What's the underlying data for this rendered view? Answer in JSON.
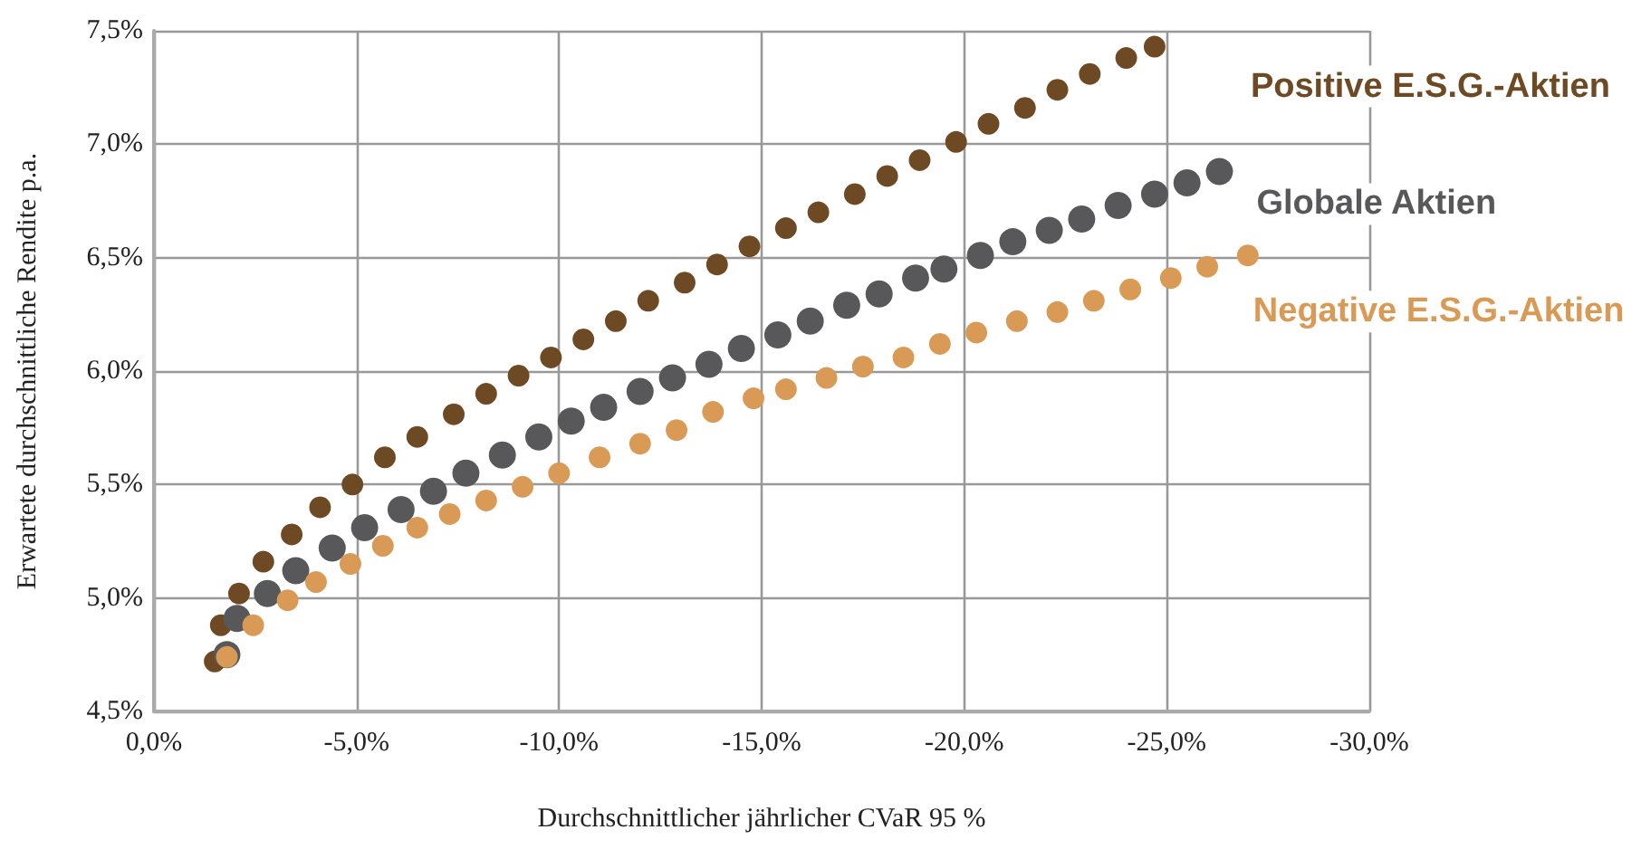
{
  "chart_data": {
    "type": "scatter",
    "xlabel": "Durchschnittlicher jährlicher CVaR 95 %",
    "ylabel": "Erwartete durchschnittliche Rendite p.a.",
    "xlim": [
      0,
      -30
    ],
    "xticks": [
      {
        "value": 0,
        "label": "0,0%"
      },
      {
        "value": -5,
        "label": "-5,0%"
      },
      {
        "value": -10,
        "label": "-10,0%"
      },
      {
        "value": -15,
        "label": "-15,0%"
      },
      {
        "value": -20,
        "label": "-20,0%"
      },
      {
        "value": -25,
        "label": "-25,0%"
      },
      {
        "value": -30,
        "label": "-30,0%"
      }
    ],
    "ylim": [
      4.5,
      7.5
    ],
    "yticks": [
      {
        "value": 4.5,
        "label": "4,5%"
      },
      {
        "value": 5.0,
        "label": "5,0%"
      },
      {
        "value": 5.5,
        "label": "5,5%"
      },
      {
        "value": 6.0,
        "label": "6,0%"
      },
      {
        "value": 6.5,
        "label": "6,5%"
      },
      {
        "value": 7.0,
        "label": "7,0%"
      },
      {
        "value": 7.5,
        "label": "7,5%"
      }
    ],
    "grid": true,
    "legend": false,
    "marker": "circle",
    "series": [
      {
        "name": "Positive E.S.G.-Aktien",
        "color": "#6e4a24",
        "x": [
          -1.5,
          -1.65,
          -2.1,
          -2.7,
          -3.4,
          -4.1,
          -4.9,
          -5.7,
          -6.5,
          -7.4,
          -8.2,
          -9.0,
          -9.8,
          -10.6,
          -11.4,
          -12.2,
          -13.1,
          -13.9,
          -14.7,
          -15.6,
          -16.4,
          -17.3,
          -18.1,
          -18.9,
          -19.8,
          -20.6,
          -21.5,
          -22.3,
          -23.1,
          -24.0,
          -24.7
        ],
        "values": [
          4.72,
          4.88,
          5.02,
          5.16,
          5.28,
          5.4,
          5.5,
          5.62,
          5.71,
          5.81,
          5.9,
          5.98,
          6.06,
          6.14,
          6.22,
          6.31,
          6.39,
          6.47,
          6.55,
          6.63,
          6.7,
          6.78,
          6.86,
          6.93,
          7.01,
          7.09,
          7.16,
          7.24,
          7.31,
          7.38,
          7.43
        ]
      },
      {
        "name": "Globale Aktien",
        "color": "#58585a",
        "x": [
          -1.8,
          -2.05,
          -2.8,
          -3.5,
          -4.4,
          -5.2,
          -6.1,
          -6.9,
          -7.7,
          -8.6,
          -9.5,
          -10.3,
          -11.1,
          -12.0,
          -12.8,
          -13.7,
          -14.5,
          -15.4,
          -16.2,
          -17.1,
          -17.9,
          -18.8,
          -19.5,
          -20.4,
          -21.2,
          -22.1,
          -22.9,
          -23.8,
          -24.7,
          -25.5,
          -26.3
        ],
        "values": [
          4.75,
          4.91,
          5.02,
          5.12,
          5.22,
          5.31,
          5.39,
          5.47,
          5.55,
          5.63,
          5.71,
          5.78,
          5.84,
          5.91,
          5.97,
          6.03,
          6.1,
          6.16,
          6.22,
          6.29,
          6.34,
          6.41,
          6.45,
          6.51,
          6.57,
          6.62,
          6.67,
          6.73,
          6.78,
          6.83,
          6.88
        ]
      },
      {
        "name": "Negative E.S.G.-Aktien",
        "color": "#d99a55",
        "x": [
          -1.8,
          -2.45,
          -3.3,
          -4.0,
          -4.85,
          -5.65,
          -6.5,
          -7.3,
          -8.2,
          -9.1,
          -10.0,
          -11.0,
          -12.0,
          -12.9,
          -13.8,
          -14.8,
          -15.6,
          -16.6,
          -17.5,
          -18.5,
          -19.4,
          -20.3,
          -21.3,
          -22.3,
          -23.2,
          -24.1,
          -25.1,
          -26.0,
          -27.0
        ],
        "values": [
          4.74,
          4.88,
          4.99,
          5.07,
          5.15,
          5.23,
          5.31,
          5.37,
          5.43,
          5.49,
          5.55,
          5.62,
          5.68,
          5.74,
          5.82,
          5.88,
          5.92,
          5.97,
          6.02,
          6.06,
          6.12,
          6.17,
          6.22,
          6.26,
          6.31,
          6.36,
          6.41,
          6.46,
          6.51
        ]
      }
    ]
  }
}
